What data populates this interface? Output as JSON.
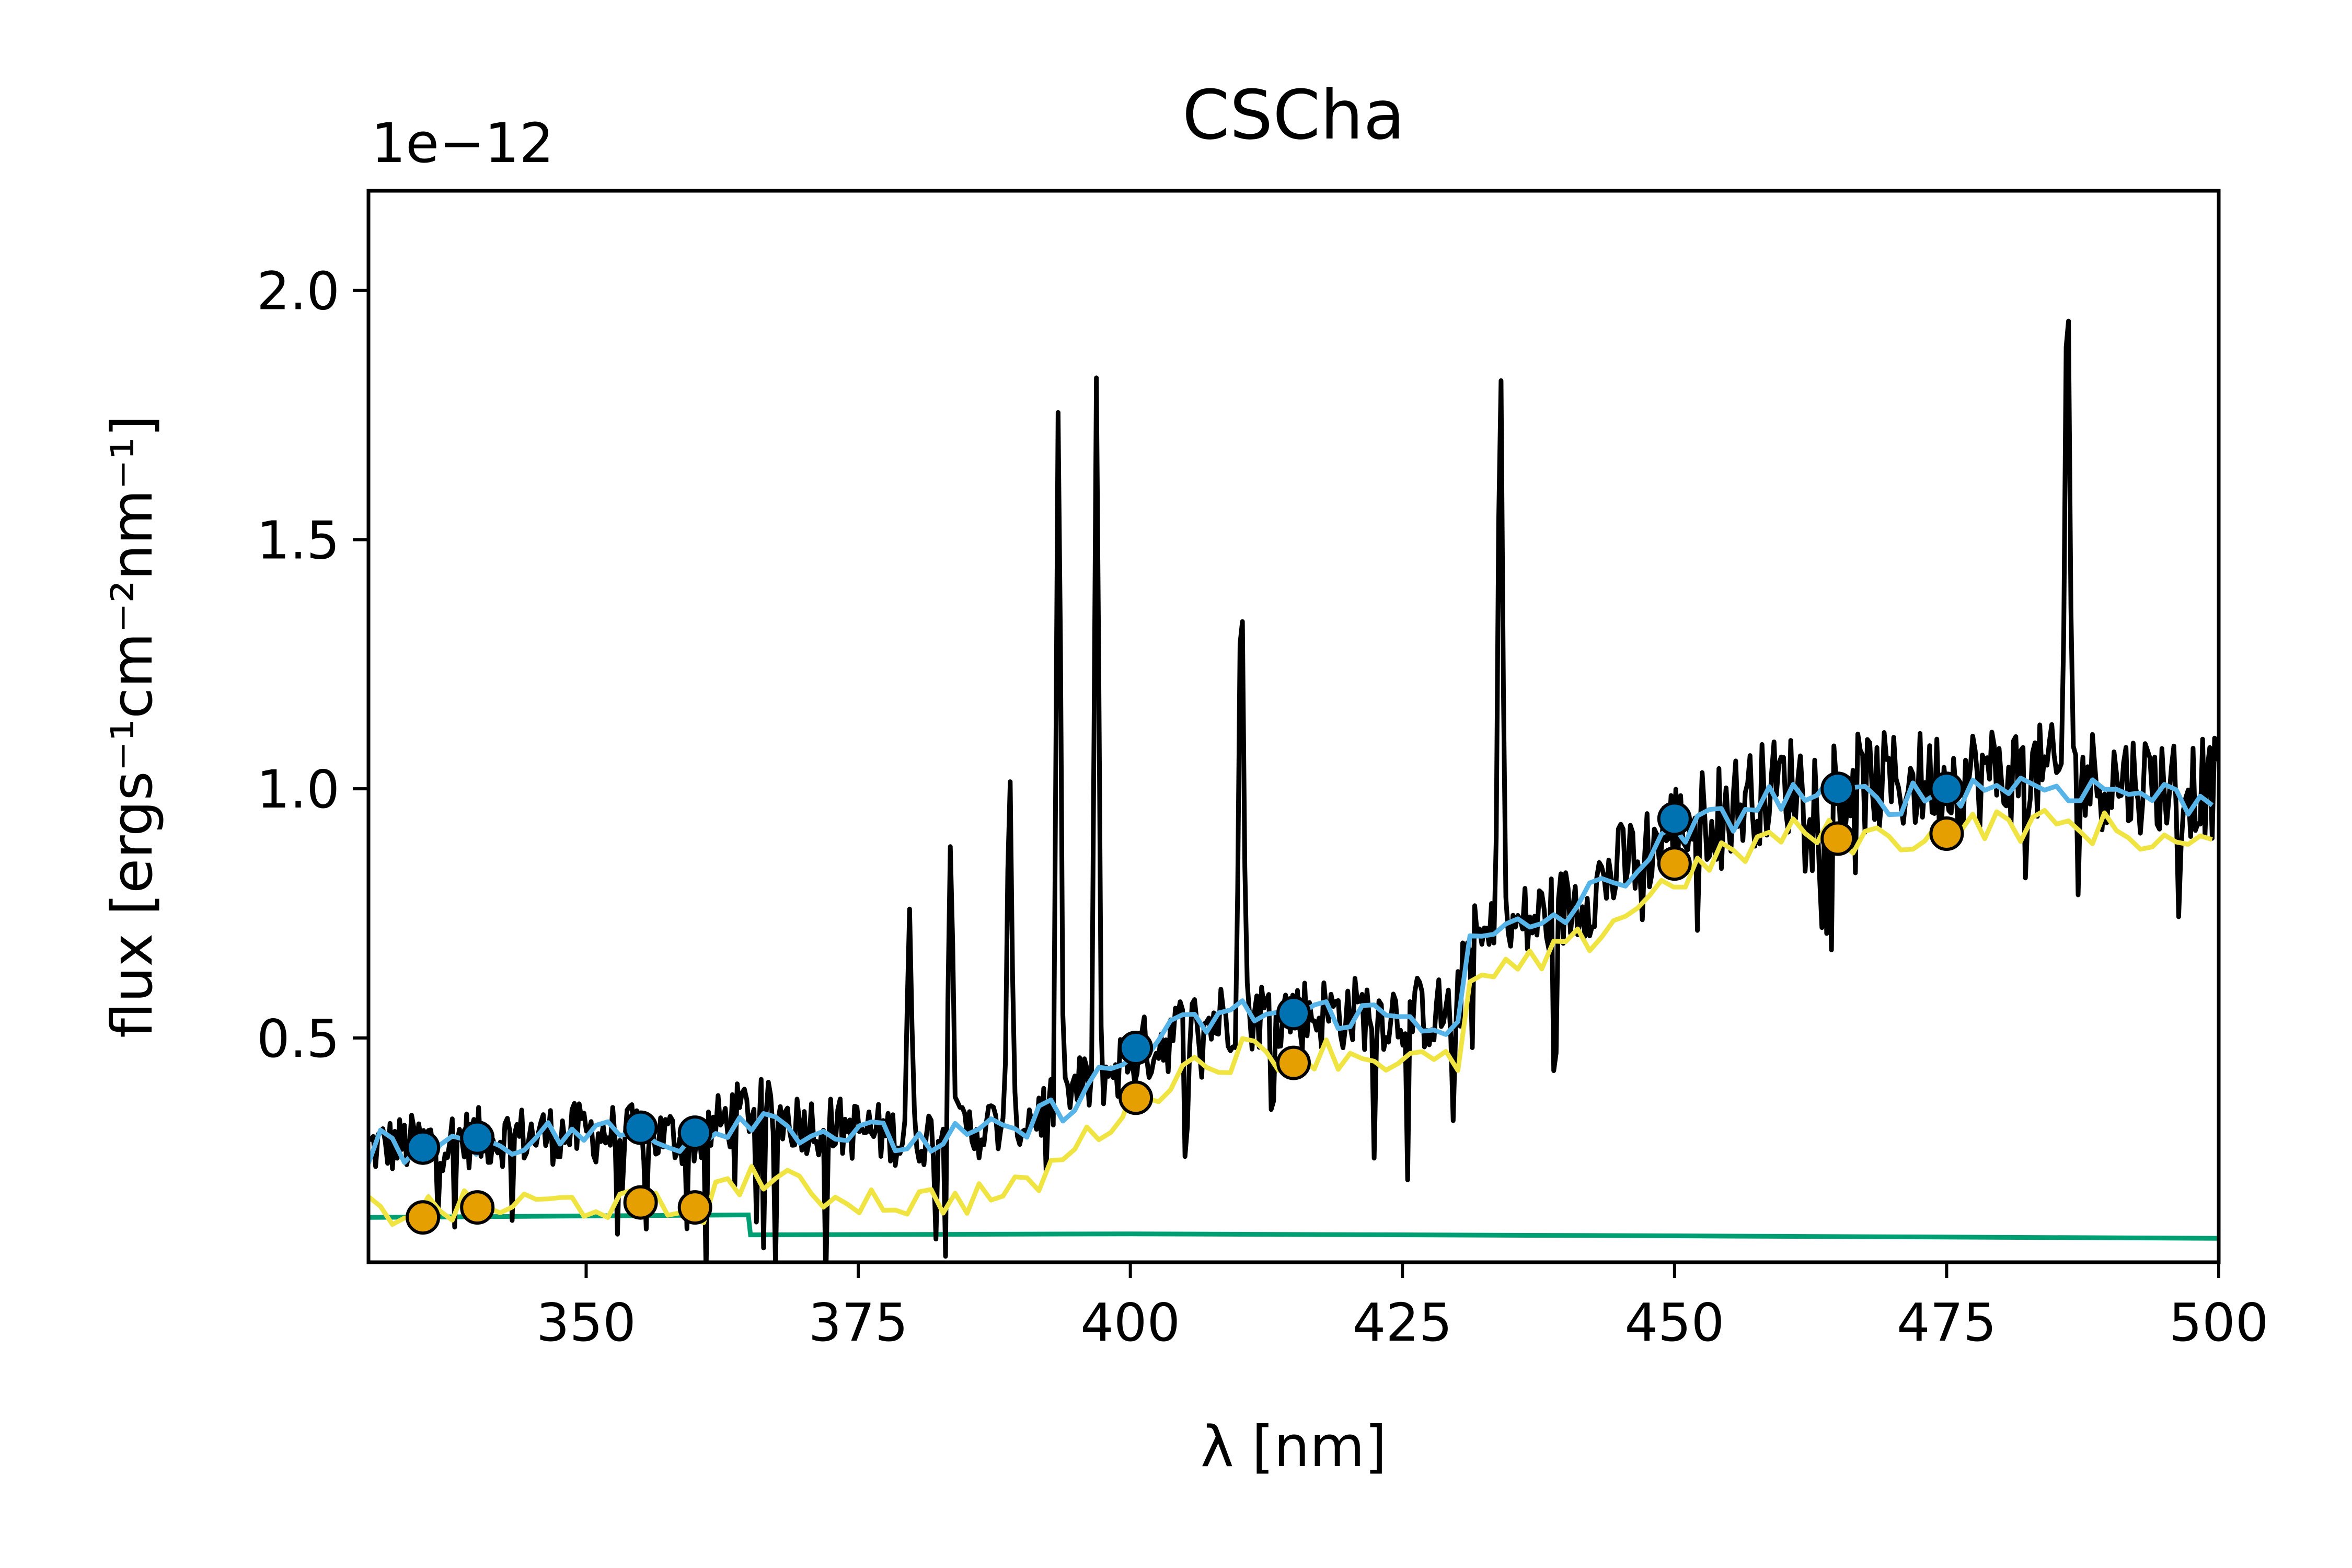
{
  "chart_data": {
    "type": "line",
    "title": "CSCha",
    "xlabel": "λ [nm]",
    "ylabel": "flux [ergs⁻¹cm⁻²nm⁻¹]",
    "y_offset_text": "1e−12",
    "xlim": [
      330,
      500
    ],
    "ylim": [
      0.05,
      2.2
    ],
    "y_scale_factor": 1e-12,
    "grid": false,
    "legend": "none",
    "x_ticks": [
      350,
      375,
      400,
      425,
      450,
      475,
      500
    ],
    "y_ticks": [
      0.5,
      1.0,
      1.5,
      2.0
    ],
    "x_tick_labels": [
      "350",
      "375",
      "400",
      "425",
      "450",
      "475",
      "500"
    ],
    "y_tick_labels": [
      "0.5",
      "1.0",
      "1.5",
      "2.0"
    ],
    "colors": {
      "spectrum": "#000000",
      "model_total": "#56b4e9",
      "model_photosphere": "#f0e442",
      "slab": "#009e73",
      "points_total": "#0072b2",
      "points_photosphere": "#e69f00"
    },
    "series": [
      {
        "kind": "spectrum",
        "anchors_x": [
          330,
          340,
          350,
          360,
          365,
          370,
          380,
          390,
          400,
          405,
          410,
          420,
          430,
          431,
          440,
          450,
          460,
          470,
          480,
          490,
          500
        ],
        "anchors_y": [
          0.28,
          0.3,
          0.31,
          0.3,
          0.36,
          0.33,
          0.3,
          0.33,
          0.46,
          0.52,
          0.55,
          0.55,
          0.55,
          0.68,
          0.76,
          0.92,
          1.01,
          1.01,
          1.03,
          1.02,
          1.0
        ],
        "emission_lines": [
          {
            "x": 379.7,
            "peak": 0.78
          },
          {
            "x": 383.5,
            "peak": 0.94
          },
          {
            "x": 388.9,
            "peak": 1.12
          },
          {
            "x": 393.4,
            "peak": 1.89
          },
          {
            "x": 396.9,
            "peak": 1.89
          },
          {
            "x": 410.2,
            "peak": 1.56
          },
          {
            "x": 434.0,
            "peak": 1.99
          },
          {
            "x": 486.1,
            "peak": 2.2
          }
        ]
      },
      {
        "kind": "model_total",
        "anchors_x": [
          330,
          340,
          350,
          360,
          365,
          370,
          380,
          390,
          400,
          405,
          410,
          420,
          430,
          431,
          440,
          450,
          460,
          470,
          480,
          490,
          500
        ],
        "anchors_y": [
          0.28,
          0.29,
          0.31,
          0.3,
          0.35,
          0.32,
          0.29,
          0.31,
          0.46,
          0.52,
          0.55,
          0.55,
          0.53,
          0.68,
          0.75,
          0.9,
          0.99,
          0.98,
          1.01,
          1.0,
          0.97
        ]
      },
      {
        "kind": "model_photosphere",
        "anchors_x": [
          330,
          340,
          350,
          360,
          365,
          370,
          380,
          390,
          400,
          405,
          410,
          420,
          430,
          431,
          440,
          450,
          460,
          470,
          480,
          490,
          500
        ],
        "anchors_y": [
          0.15,
          0.16,
          0.17,
          0.15,
          0.23,
          0.19,
          0.17,
          0.19,
          0.37,
          0.44,
          0.47,
          0.47,
          0.44,
          0.6,
          0.67,
          0.82,
          0.91,
          0.9,
          0.93,
          0.92,
          0.87
        ]
      },
      {
        "kind": "slab",
        "anchors_x": [
          330,
          364.9,
          365.1,
          400,
          450,
          500
        ],
        "anchors_y": [
          0.14,
          0.145,
          0.105,
          0.107,
          0.103,
          0.098
        ]
      }
    ],
    "points_total": {
      "x": [
        335,
        340,
        355,
        360,
        400.5,
        415,
        450,
        465,
        475
      ],
      "y": [
        0.28,
        0.3,
        0.32,
        0.31,
        0.48,
        0.55,
        0.94,
        1.0,
        1.0
      ]
    },
    "points_photosphere": {
      "x": [
        335,
        340,
        355,
        360,
        400.5,
        415,
        450,
        465,
        475
      ],
      "y": [
        0.14,
        0.16,
        0.17,
        0.16,
        0.38,
        0.45,
        0.85,
        0.9,
        0.91
      ]
    }
  }
}
